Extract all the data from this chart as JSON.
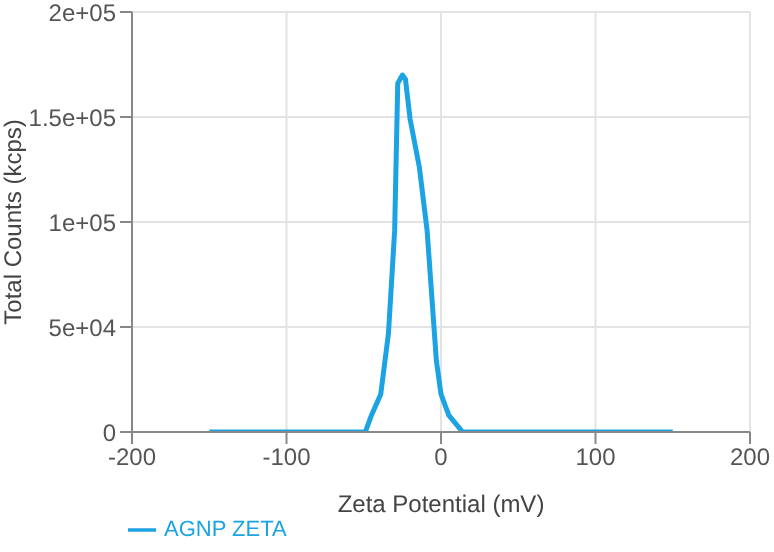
{
  "chart_data": {
    "type": "line",
    "xlabel": "Zeta Potential (mV)",
    "ylabel": "Total Counts (kcps)",
    "series": [
      {
        "name": "AGNP ZETA",
        "color": "#1ca3e3",
        "x": [
          -150,
          -49,
          -45,
          -39,
          -34,
          -30,
          -28,
          -25,
          -23,
          -20,
          -14,
          -9,
          -3,
          0,
          5,
          14,
          150
        ],
        "values": [
          0,
          0,
          8000,
          18000,
          47000,
          96000,
          166000,
          170000,
          168000,
          149000,
          126000,
          96000,
          34000,
          18000,
          8000,
          0,
          0
        ]
      }
    ],
    "xlim": [
      -200,
      200
    ],
    "xticks": [
      -200,
      -100,
      0,
      100,
      200
    ],
    "ylim": [
      0,
      200000
    ],
    "yticks": [
      {
        "value": 0,
        "label": "0"
      },
      {
        "value": 50000,
        "label": "5e+04"
      },
      {
        "value": 100000,
        "label": "1e+05"
      },
      {
        "value": 150000,
        "label": "1.5e+05"
      },
      {
        "value": 200000,
        "label": "2e+05"
      }
    ],
    "grid": true,
    "legend": "bottom left",
    "marker": "none",
    "line_style": "solid"
  }
}
